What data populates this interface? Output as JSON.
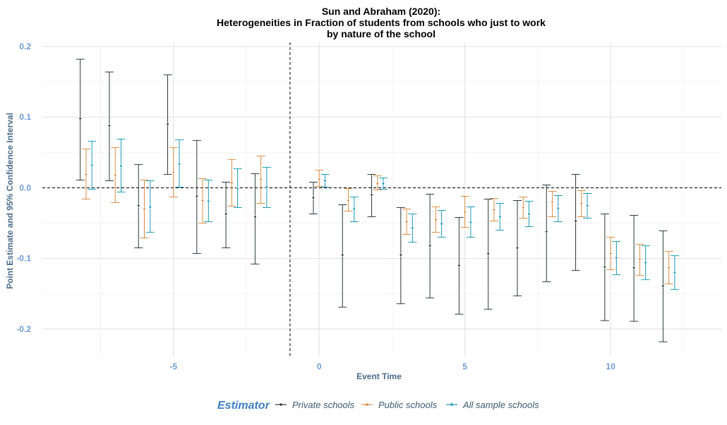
{
  "chart_data": {
    "type": "errorbar",
    "title": [
      "Sun and Abraham (2020):",
      "Heterogeneities in Fraction of students from schools who just to work",
      "by nature of the school"
    ],
    "xlabel": "Event Time",
    "ylabel": "Point Estimate and 95% Confidence Interval",
    "xlim": [
      -9.5,
      13.8
    ],
    "ylim": [
      -0.238,
      0.206
    ],
    "x_ticks": [
      -5,
      0,
      5,
      10
    ],
    "x_tick_labels": [
      "-5",
      "0",
      "5",
      "10"
    ],
    "y_ticks": [
      -0.2,
      -0.1,
      0.0,
      0.1,
      0.2
    ],
    "y_tick_labels": [
      "-0.2",
      "-0.1",
      "0.0",
      "0.1",
      "0.2"
    ],
    "reference_lines": {
      "vertical_x": -1,
      "horizontal_y": 0
    },
    "grid": true,
    "legend": {
      "title": "Estimator",
      "placement": "bottom",
      "entries": [
        "Private schools",
        "Public schools",
        "All sample schools"
      ]
    },
    "series": [
      {
        "name": "Private schools",
        "color": "#2b3a3a",
        "x": [
          -8,
          -7,
          -6,
          -5,
          -4,
          -3,
          -2,
          0,
          1,
          2,
          3,
          4,
          5,
          6,
          7,
          8,
          9,
          10,
          11,
          12
        ],
        "estimate": [
          0.098,
          0.088,
          -0.025,
          0.09,
          -0.012,
          -0.037,
          -0.041,
          -0.014,
          -0.095,
          -0.01,
          -0.095,
          -0.082,
          -0.11,
          -0.093,
          -0.085,
          -0.062,
          -0.047,
          -0.112,
          -0.113,
          -0.139
        ],
        "lower": [
          0.011,
          0.01,
          -0.085,
          0.019,
          -0.093,
          -0.085,
          -0.108,
          -0.037,
          -0.169,
          -0.041,
          -0.164,
          -0.156,
          -0.179,
          -0.172,
          -0.153,
          -0.133,
          -0.117,
          -0.188,
          -0.189,
          -0.218
        ],
        "upper": [
          0.182,
          0.164,
          0.033,
          0.16,
          0.067,
          0.008,
          0.02,
          0.008,
          -0.024,
          0.019,
          -0.028,
          -0.009,
          -0.042,
          -0.016,
          -0.018,
          0.004,
          0.019,
          -0.037,
          -0.039,
          -0.061
        ]
      },
      {
        "name": "Public schools",
        "color": "#d98e45",
        "x": [
          -8,
          -7,
          -6,
          -5,
          -4,
          -3,
          -2,
          0,
          1,
          2,
          3,
          4,
          5,
          6,
          7,
          8,
          9,
          10,
          11,
          12
        ],
        "estimate": [
          0.019,
          0.018,
          -0.03,
          0.022,
          -0.018,
          0.007,
          0.012,
          0.012,
          -0.018,
          0.006,
          -0.048,
          -0.045,
          -0.034,
          -0.031,
          -0.028,
          -0.02,
          -0.022,
          -0.093,
          -0.101,
          -0.113
        ],
        "lower": [
          -0.016,
          -0.021,
          -0.071,
          -0.013,
          -0.05,
          -0.026,
          -0.022,
          0.002,
          -0.033,
          -0.003,
          -0.066,
          -0.063,
          -0.056,
          -0.047,
          -0.043,
          -0.041,
          -0.041,
          -0.116,
          -0.124,
          -0.136
        ],
        "upper": [
          0.055,
          0.057,
          0.011,
          0.057,
          0.013,
          0.04,
          0.045,
          0.025,
          -0.001,
          0.017,
          -0.03,
          -0.027,
          -0.012,
          -0.015,
          -0.013,
          -0.005,
          -0.004,
          -0.07,
          -0.08,
          -0.09
        ]
      },
      {
        "name": "All sample schools",
        "color": "#1a9bb5",
        "x": [
          -8,
          -7,
          -6,
          -5,
          -4,
          -3,
          -2,
          0,
          1,
          2,
          3,
          4,
          5,
          6,
          7,
          8,
          9,
          10,
          11,
          12
        ],
        "estimate": [
          0.032,
          0.031,
          -0.027,
          0.034,
          -0.019,
          -0.001,
          0.001,
          0.01,
          -0.03,
          0.006,
          -0.057,
          -0.051,
          -0.049,
          -0.041,
          -0.037,
          -0.029,
          -0.025,
          -0.099,
          -0.106,
          -0.12
        ],
        "lower": [
          -0.002,
          -0.006,
          -0.063,
          0.001,
          -0.048,
          -0.028,
          -0.028,
          0.001,
          -0.048,
          -0.002,
          -0.077,
          -0.07,
          -0.07,
          -0.06,
          -0.055,
          -0.048,
          -0.043,
          -0.123,
          -0.13,
          -0.144
        ],
        "upper": [
          0.066,
          0.069,
          0.01,
          0.068,
          0.011,
          0.027,
          0.029,
          0.019,
          -0.013,
          0.014,
          -0.037,
          -0.032,
          -0.027,
          -0.022,
          -0.019,
          -0.011,
          -0.008,
          -0.076,
          -0.082,
          -0.096
        ]
      }
    ]
  }
}
